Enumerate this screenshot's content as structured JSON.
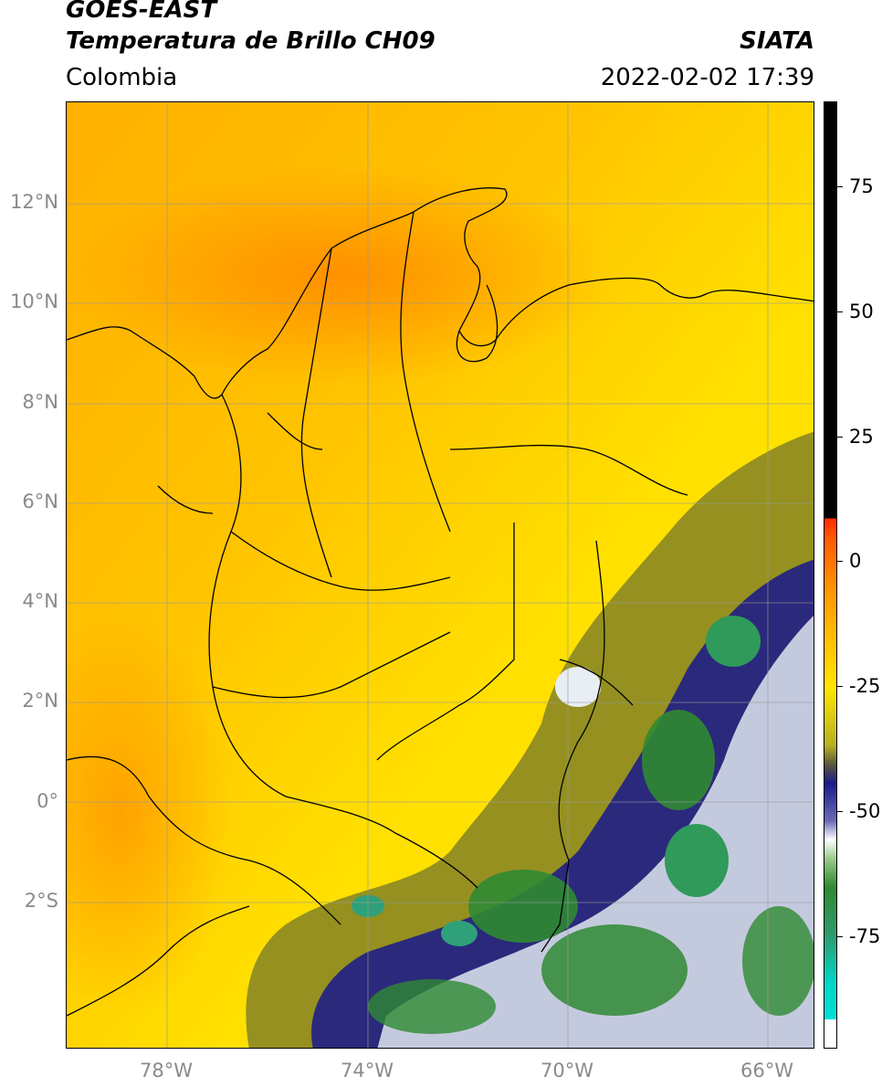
{
  "header": {
    "line1": "GOES-EAST",
    "line2": "Temperatura de Brillo CH09",
    "region": "Colombia",
    "brand": "SIATA",
    "timestamp": "2022-02-02 17:39"
  },
  "map": {
    "lat_labels": [
      "12°N",
      "10°N",
      "8°N",
      "6°N",
      "4°N",
      "2°N",
      "0°",
      "2°S"
    ],
    "lon_labels": [
      "78°W",
      "74°W",
      "70°W",
      "66°W"
    ]
  },
  "colorbar": {
    "labels": [
      "75",
      "50",
      "25",
      "0",
      "-25",
      "-50",
      "-75"
    ],
    "colors": {
      "black": "#000000",
      "red": "#ff2a00",
      "orange": "#ff9a00",
      "yellow": "#ffe600",
      "olive": "#7c7a20",
      "navy": "#1a1a8a",
      "white": "#ffffff",
      "green": "#2f8a32",
      "teal": "#00d6c8"
    }
  }
}
